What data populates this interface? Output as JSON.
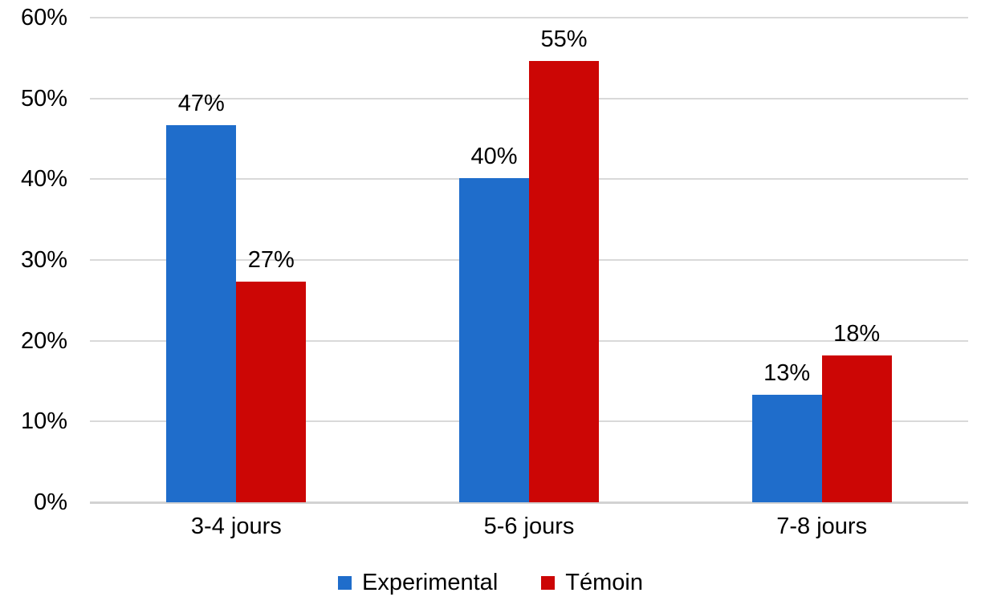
{
  "chart_data": {
    "type": "bar",
    "title": "",
    "categories": [
      "3-4 jours",
      "5-6 jours",
      "7-8 jours"
    ],
    "series": [
      {
        "name": "Experimental",
        "color": "#1F6DCB",
        "values": [
          46.7,
          40.1,
          13.3
        ],
        "bar_labels": [
          "47%",
          "40%",
          "13%"
        ]
      },
      {
        "name": "Témoin",
        "color": "#CC0605",
        "values": [
          27.3,
          54.6,
          18.2
        ],
        "bar_labels": [
          "27%",
          "55%",
          "18%"
        ]
      }
    ],
    "ylim": [
      0,
      60
    ],
    "ytick_step": 10,
    "ytick_labels": [
      "0%",
      "10%",
      "20%",
      "30%",
      "40%",
      "50%",
      "60%"
    ],
    "grid": "horizontal",
    "gridline_color": "#D9D9D9",
    "legend_position": "bottom",
    "background": "#FFFFFF",
    "text_color": "#000000"
  }
}
